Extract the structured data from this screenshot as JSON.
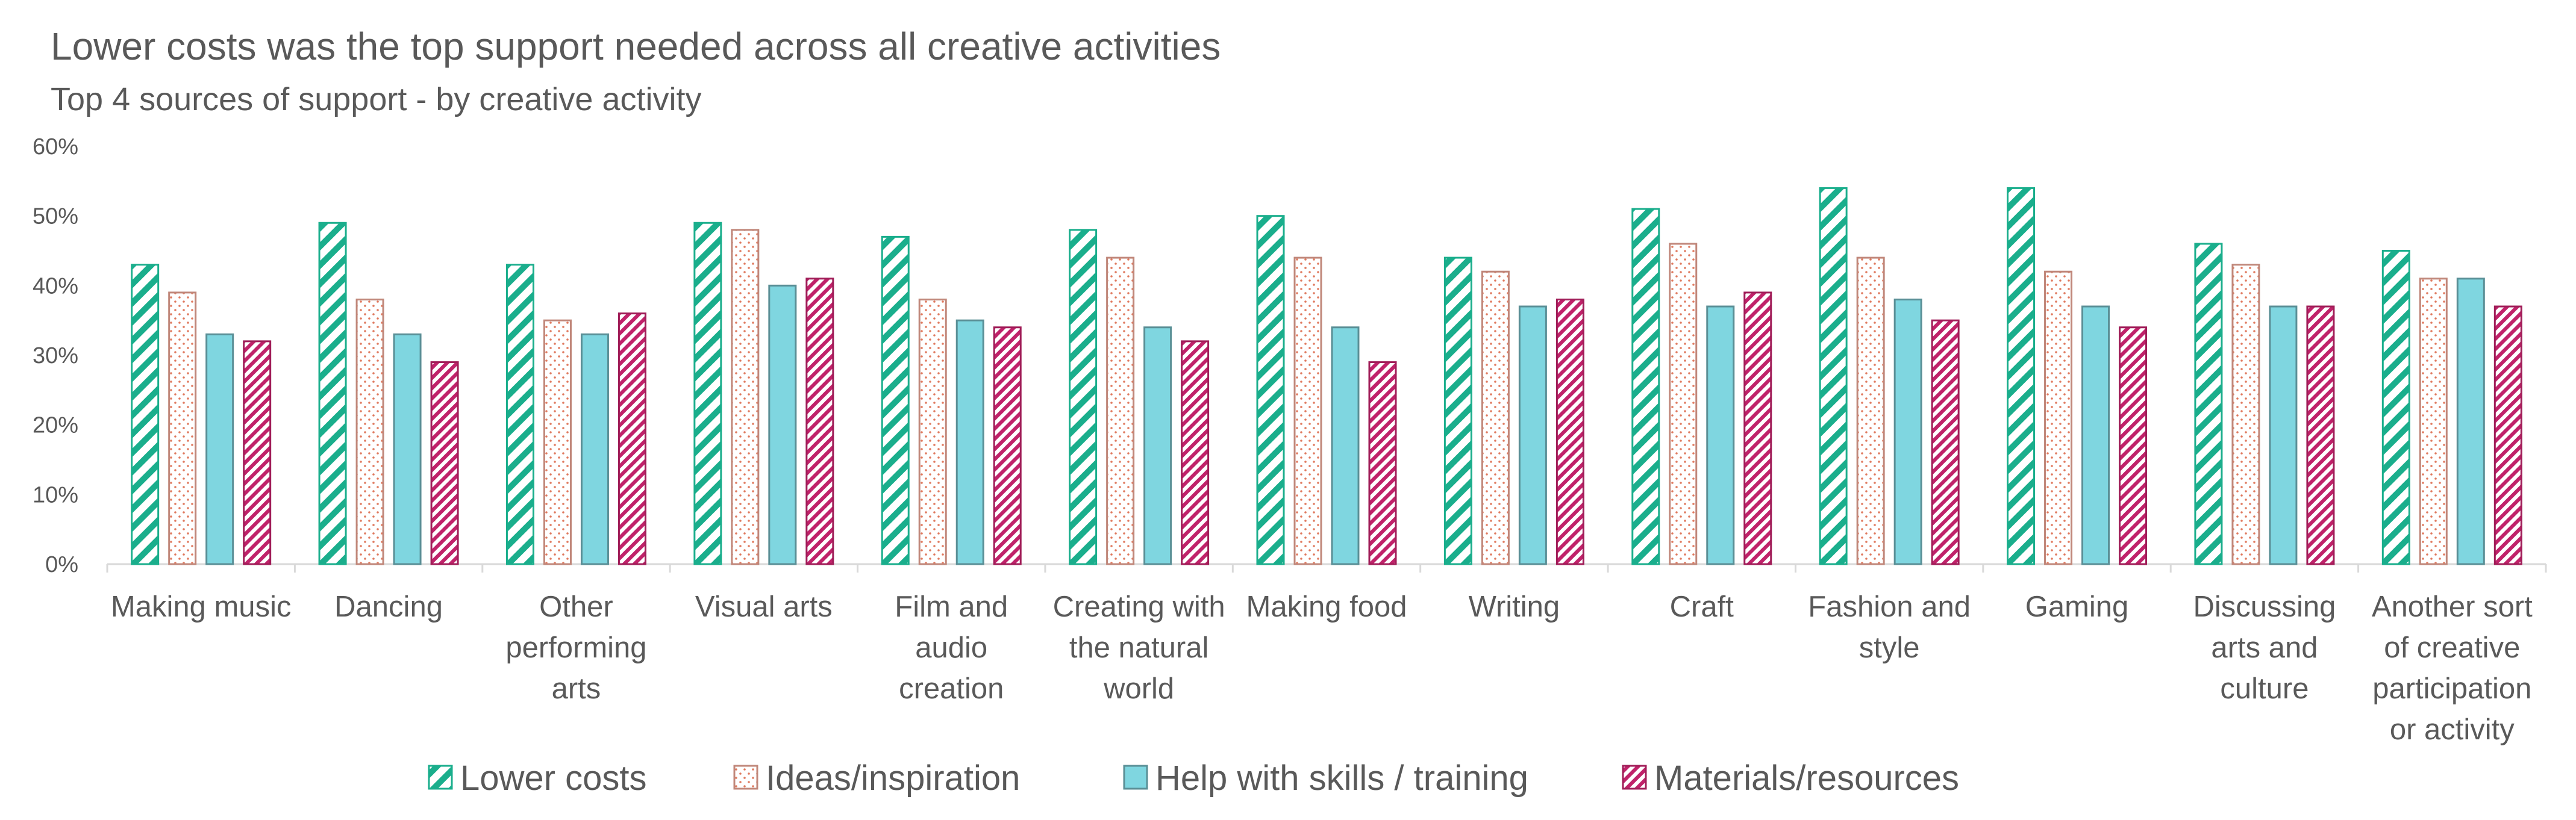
{
  "chart_data": {
    "type": "bar",
    "title": "Lower costs was the top support needed across all creative activities",
    "subtitle": "Top 4 sources of support - by creative activity",
    "xlabel": "",
    "ylabel": "",
    "ylim": [
      0,
      60
    ],
    "y_ticks": [
      "0%",
      "10%",
      "20%",
      "30%",
      "40%",
      "50%",
      "60%"
    ],
    "y_tick_values": [
      0,
      10,
      20,
      30,
      40,
      50,
      60
    ],
    "grid": false,
    "legend_position": "bottom",
    "categories": [
      [
        "Making music"
      ],
      [
        "Dancing"
      ],
      [
        "Other",
        "performing",
        "arts"
      ],
      [
        "Visual arts"
      ],
      [
        "Film and",
        "audio",
        "creation"
      ],
      [
        "Creating with",
        "the natural",
        "world"
      ],
      [
        "Making food"
      ],
      [
        "Writing"
      ],
      [
        "Craft"
      ],
      [
        "Fashion and",
        "style"
      ],
      [
        "Gaming"
      ],
      [
        "Discussing",
        "arts and",
        "culture"
      ],
      [
        "Another sort",
        "of creative",
        "participation",
        "or activity"
      ]
    ],
    "series": [
      {
        "name": "Lower costs",
        "color": "#1aae8c",
        "pattern": "wide-diagonal-stripes",
        "values": [
          43,
          49,
          43,
          49,
          47,
          48,
          50,
          44,
          51,
          54,
          54,
          46,
          45
        ]
      },
      {
        "name": "Ideas/inspiration",
        "color": "#e07a5f",
        "pattern": "dots",
        "values": [
          39,
          38,
          35,
          48,
          38,
          44,
          44,
          42,
          46,
          44,
          42,
          43,
          41
        ]
      },
      {
        "name": "Help with skills / training",
        "color": "#7fd6e0",
        "pattern": "solid",
        "values": [
          33,
          33,
          33,
          40,
          35,
          34,
          34,
          37,
          37,
          38,
          37,
          37,
          41
        ]
      },
      {
        "name": "Materials/resources",
        "color": "#c0226a",
        "pattern": "narrow-diagonal-stripes",
        "values": [
          32,
          29,
          36,
          41,
          34,
          32,
          29,
          38,
          39,
          35,
          34,
          37,
          37
        ]
      }
    ]
  }
}
